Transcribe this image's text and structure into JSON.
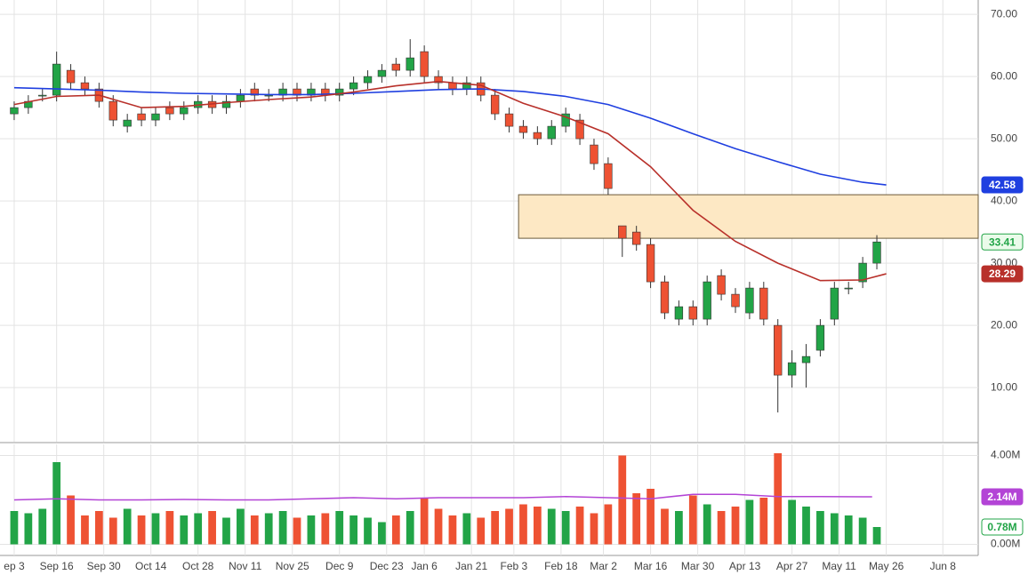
{
  "chart_data": {
    "type": "candlestick",
    "up_color": "#22a447",
    "down_color": "#ee5233",
    "x": [
      0,
      3,
      6,
      9,
      12,
      15,
      18,
      21,
      24,
      27,
      30,
      33,
      36,
      39,
      42,
      45,
      48,
      51,
      54,
      57,
      60,
      63,
      66,
      69,
      72,
      75,
      78,
      81,
      84,
      87,
      90,
      93,
      96,
      99,
      102,
      105,
      108,
      111,
      114,
      117,
      120,
      123,
      126,
      129,
      132,
      135,
      138,
      141,
      144,
      147,
      150,
      153,
      156,
      159,
      162,
      165,
      168,
      171,
      174,
      177,
      180,
      183
    ],
    "open": [
      54,
      55,
      57,
      57,
      61,
      59,
      58,
      56,
      52,
      54,
      53,
      55,
      54,
      55,
      56,
      55,
      56,
      58,
      57,
      57,
      58,
      57,
      58,
      57,
      58,
      59,
      60,
      62,
      61,
      64,
      60,
      59,
      58,
      59,
      57,
      54,
      52,
      51,
      50,
      52,
      53,
      49,
      46,
      36,
      35,
      33,
      27,
      21,
      23,
      21,
      28,
      25,
      22,
      26,
      20,
      12,
      14,
      16,
      21,
      26,
      27,
      30
    ],
    "high": [
      56,
      57,
      58,
      64,
      62,
      60,
      59,
      57,
      54,
      55,
      55,
      56,
      56,
      57,
      57,
      57,
      58,
      59,
      58,
      59,
      59,
      59,
      59,
      59,
      60,
      61,
      62,
      63,
      66,
      65,
      61,
      60,
      60,
      60,
      58,
      55,
      53,
      52,
      53,
      55,
      54,
      50,
      47,
      36,
      36,
      34,
      28,
      24,
      24,
      28,
      29,
      26,
      27,
      27,
      21,
      16,
      17,
      21,
      27,
      27,
      31,
      34.5
    ],
    "low": [
      53,
      54,
      56,
      56,
      58,
      57,
      55,
      52,
      51,
      52,
      52,
      53,
      53,
      54,
      54,
      54,
      55,
      56,
      56,
      56,
      56,
      56,
      56,
      56,
      57,
      58,
      59,
      60,
      60,
      59,
      58,
      57,
      57,
      56,
      53,
      51,
      50,
      49,
      49,
      51,
      49,
      45,
      41,
      31,
      32,
      26,
      21,
      20,
      20,
      20,
      24,
      22,
      21,
      20,
      6,
      10,
      10,
      15,
      20,
      25,
      26,
      29
    ],
    "close": [
      55,
      56,
      57,
      62,
      59,
      58,
      56,
      53,
      53,
      53,
      54,
      54,
      55,
      56,
      55,
      56,
      57,
      57,
      57,
      58,
      57,
      58,
      57,
      58,
      59,
      60,
      61,
      61,
      63,
      60,
      59,
      58,
      59,
      57,
      54,
      52,
      51,
      50,
      52,
      54,
      50,
      46,
      42,
      34,
      33,
      27,
      22,
      23,
      21,
      27,
      25,
      23,
      26,
      21,
      12,
      14,
      15,
      20,
      26,
      26,
      30,
      33.41
    ],
    "volume": [
      1.5,
      1.4,
      1.6,
      3.7,
      2.2,
      1.3,
      1.5,
      1.2,
      1.6,
      1.3,
      1.4,
      1.5,
      1.3,
      1.4,
      1.5,
      1.2,
      1.6,
      1.3,
      1.4,
      1.5,
      1.2,
      1.3,
      1.4,
      1.5,
      1.3,
      1.2,
      1.0,
      1.3,
      1.5,
      2.1,
      1.6,
      1.3,
      1.4,
      1.2,
      1.5,
      1.6,
      1.8,
      1.7,
      1.6,
      1.5,
      1.7,
      1.4,
      1.8,
      4.0,
      2.3,
      2.5,
      1.6,
      1.5,
      2.2,
      1.8,
      1.5,
      1.7,
      2.0,
      2.1,
      4.1,
      2.0,
      1.7,
      1.5,
      1.4,
      1.3,
      1.2,
      0.78
    ],
    "volume_last_label": "0.78M",
    "lines": [
      {
        "color": "#1f3fe0",
        "x": [
          0,
          9,
          18,
          27,
          36,
          45,
          54,
          63,
          72,
          81,
          90,
          99,
          108,
          117,
          126,
          135,
          144,
          153,
          162,
          171,
          180,
          185
        ],
        "values": [
          58.2,
          58.0,
          57.8,
          57.5,
          57.3,
          57.2,
          57.1,
          57.1,
          57.3,
          57.6,
          57.9,
          58.0,
          57.6,
          56.8,
          55.5,
          53.3,
          50.8,
          48.4,
          46.3,
          44.3,
          43.0,
          42.58
        ]
      },
      {
        "color": "#b8302a",
        "x": [
          0,
          9,
          18,
          27,
          36,
          45,
          54,
          63,
          72,
          81,
          90,
          99,
          108,
          117,
          126,
          135,
          144,
          153,
          162,
          171,
          180,
          185
        ],
        "values": [
          55.5,
          56.8,
          57.0,
          55.0,
          55.2,
          55.8,
          56.3,
          56.7,
          57.5,
          58.5,
          59.2,
          58.6,
          55.7,
          53.5,
          50.8,
          45.5,
          38.5,
          33.5,
          30.0,
          27.2,
          27.3,
          28.29
        ]
      }
    ],
    "volume_average": {
      "color": "#b344d6",
      "x": [
        0,
        9,
        18,
        27,
        36,
        45,
        54,
        63,
        72,
        81,
        90,
        99,
        108,
        117,
        126,
        135,
        144,
        153,
        162,
        171,
        180,
        182
      ],
      "values": [
        2.0,
        2.05,
        2.0,
        2.0,
        2.02,
        2.0,
        2.0,
        2.05,
        2.1,
        2.05,
        2.1,
        2.1,
        2.1,
        2.15,
        2.1,
        2.05,
        2.25,
        2.25,
        2.15,
        2.15,
        2.14,
        2.14
      ],
      "last_label": "2.14M"
    },
    "zone": {
      "x": [
        107,
        204.5
      ],
      "y": [
        34,
        41
      ],
      "color": "#fde8c4"
    },
    "xlim": [
      -1.5,
      204.5
    ],
    "ylim": [
      1.3,
      72.3
    ],
    "y2lim": [
      -0.5,
      4.5
    ],
    "xticks": [
      {
        "value": 0,
        "label": "ep 3"
      },
      {
        "value": 9,
        "label": "Sep 16"
      },
      {
        "value": 19,
        "label": "Sep 30"
      },
      {
        "value": 29,
        "label": "Oct 14"
      },
      {
        "value": 39,
        "label": "Oct 28"
      },
      {
        "value": 49,
        "label": "Nov 11"
      },
      {
        "value": 59,
        "label": "Nov 25"
      },
      {
        "value": 69,
        "label": "Dec 9"
      },
      {
        "value": 79,
        "label": "Dec 23"
      },
      {
        "value": 87,
        "label": "Jan 6"
      },
      {
        "value": 97,
        "label": "Jan 21"
      },
      {
        "value": 106,
        "label": "Feb 3"
      },
      {
        "value": 116,
        "label": "Feb 18"
      },
      {
        "value": 125,
        "label": "Mar 2"
      },
      {
        "value": 135,
        "label": "Mar 16"
      },
      {
        "value": 145,
        "label": "Mar 30"
      },
      {
        "value": 155,
        "label": "Apr 13"
      },
      {
        "value": 165,
        "label": "Apr 27"
      },
      {
        "value": 175,
        "label": "May 11"
      },
      {
        "value": 185,
        "label": "May 26"
      },
      {
        "value": 197,
        "label": "Jun 8"
      }
    ],
    "yticks": [
      {
        "value": 10,
        "label": "10.00"
      },
      {
        "value": 20,
        "label": "20.00"
      },
      {
        "value": 30,
        "label": "30.00"
      },
      {
        "value": 40,
        "label": "40.00"
      },
      {
        "value": 50,
        "label": "50.00"
      },
      {
        "value": 60,
        "label": "60.00"
      },
      {
        "value": 70,
        "label": "70.00"
      }
    ],
    "y2ticks": [
      {
        "value": 0,
        "label": "0.00M"
      },
      {
        "value": 4,
        "label": "4.00M"
      }
    ],
    "grid": true
  }
}
